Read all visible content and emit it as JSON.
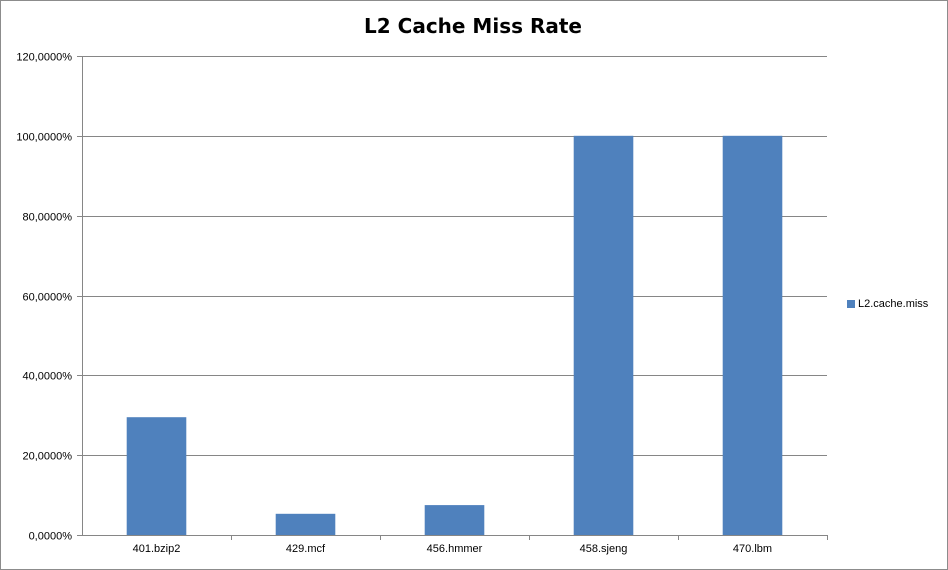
{
  "chart_data": {
    "type": "bar",
    "title": "L2 Cache Miss Rate",
    "categories": [
      "401.bzip2",
      "429.mcf",
      "456.hmmer",
      "458.sjeng",
      "470.lbm"
    ],
    "series": [
      {
        "name": "L2.cache.miss",
        "values": [
          29.5,
          5.3,
          7.5,
          100,
          100
        ]
      }
    ],
    "ylim": [
      0,
      120
    ],
    "yticks": [
      0,
      20,
      40,
      60,
      80,
      100,
      120
    ],
    "ytick_labels": [
      "0,0000%",
      "20,0000%",
      "40,0000%",
      "60,0000%",
      "80,0000%",
      "100,0000%",
      "120,0000%"
    ],
    "grid": true,
    "legend_position": "right",
    "colors": {
      "bar": "#4f81bd",
      "grid": "#868686",
      "axis": "#868686"
    }
  }
}
